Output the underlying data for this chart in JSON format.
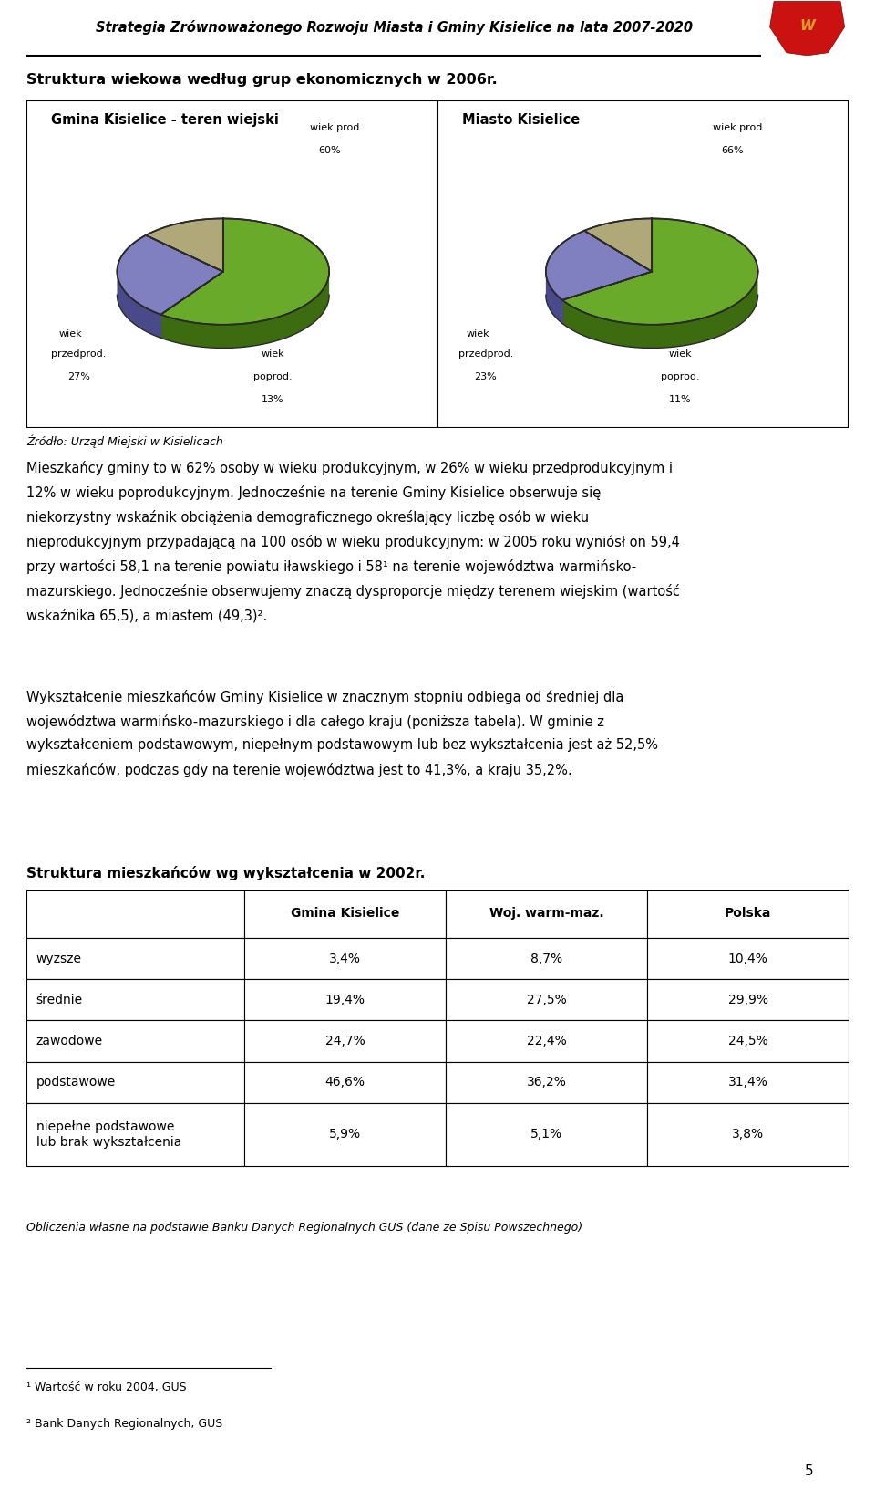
{
  "header_title": "Strategia Zrównoważonego Rozwoju Miasta i Gminy Kisielice na lata 2007-2020",
  "section_title": "Struktura wiekowa według grup ekonomicznych w 2006r.",
  "chart1_title": "Gmina Kisielice - teren wiejski",
  "chart2_title": "Miasto Kisielice",
  "chart1_slices": [
    60,
    27,
    13
  ],
  "chart2_slices": [
    66,
    23,
    11
  ],
  "pie_colors": [
    "#6aaa2a",
    "#8080c0",
    "#b0a878"
  ],
  "pie_dark_colors": [
    "#3d6b10",
    "#4a4a8a",
    "#807850"
  ],
  "source_text": "Źródło: Urząd Miejski w Kisielicach",
  "para1": "Mieszkańcy gminy to w 62% osoby w wieku produkcyjnym, w 26% w wieku przedprodukcyjnym i 12% w wieku poprodukcyjnym. Jednocześnie na terenie Gminy Kisielice obserwuje się niekorzystny wskaźnik obciążenia demograficznego określający liczbę osób w wieku nieprodukcyjnym przypadającą na 100 osób w wieku produkcyjnym: w 2005 roku wyniósł on 59,4 przy wartości 58,1 na terenie powiatu iławskiego i 58¹ na terenie województwa warmińsko-mazurskiego. Jednocześnie obserwujemy znaczą dysproporcje między terenem wiejskim (wartość wskaźnika 65,5), a miastem (49,3)².",
  "para2": "Wykształcenie mieszkańców Gminy Kisielice w znacznym stopniu odbiega od średniej dla województwa warmińsko-mazurskiego i dla całego kraju (poniższa tabela). W gminie z wykształceniem podstawowym, niepełnym podstawowym lub bez wykształcenia jest aż 52,5% mieszkańców, podczas gdy na terenie województwa jest to 41,3%, a kraju 35,2%.",
  "table_title": "Struktura mieszkańców wg wykształcenia w 2002r.",
  "table_headers": [
    "",
    "Gmina Kisielice",
    "Woj. warm-maz.",
    "Polska"
  ],
  "table_rows": [
    [
      "wyższe",
      "3,4%",
      "8,7%",
      "10,4%"
    ],
    [
      "średnie",
      "19,4%",
      "27,5%",
      "29,9%"
    ],
    [
      "zawodowe",
      "24,7%",
      "22,4%",
      "24,5%"
    ],
    [
      "podstawowe",
      "46,6%",
      "36,2%",
      "31,4%"
    ],
    [
      "niepełne podstawowe\nlub brak wykształcenia",
      "5,9%",
      "5,1%",
      "3,8%"
    ]
  ],
  "table_source": "Obliczenia własne na podstawie Banku Danych Regionalnych GUS (dane ze Spisu Powszechnego)",
  "footnotes": [
    "¹ Wartość w roku 2004, GUS",
    "² Bank Danych Regionalnych, GUS"
  ],
  "page_number": "5",
  "bg_color": "#ffffff",
  "text_color": "#000000"
}
